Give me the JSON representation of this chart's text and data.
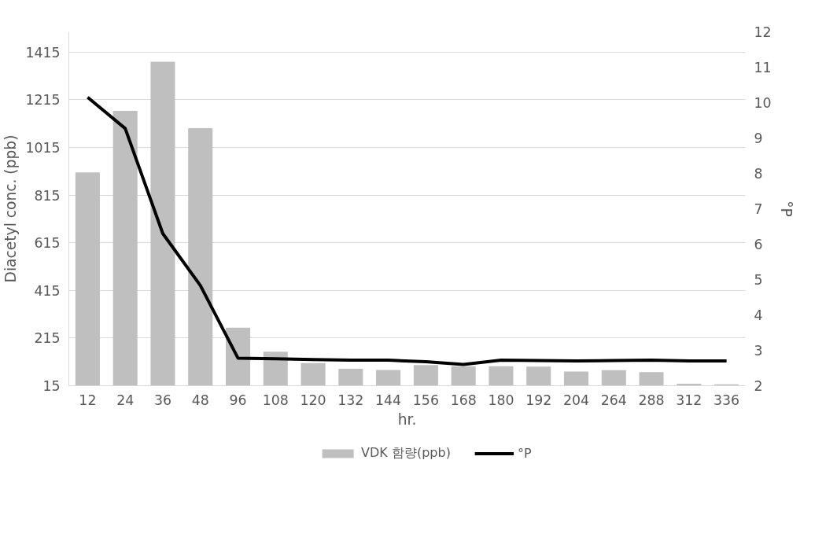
{
  "chart_data": {
    "type": "bar",
    "xlabel": "hr.",
    "ylabel": "Diacetyl conc. (ppb)",
    "y2label": "°P",
    "categories": [
      "12",
      "24",
      "36",
      "48",
      "96",
      "108",
      "120",
      "132",
      "144",
      "156",
      "168",
      "180",
      "192",
      "204",
      "264",
      "288",
      "312",
      "336"
    ],
    "series": [
      {
        "name": "VDK 함량(ppb)",
        "color": "#bfbfbf",
        "values": [
          910,
          1168,
          1375,
          1096,
          258,
          158,
          110,
          86,
          81,
          102,
          97,
          97,
          95,
          74,
          80,
          72,
          23,
          21
        ]
      },
      {
        "name": "°P",
        "color": "#000000",
        "type": "line",
        "axis": "y2",
        "values": [
          10.15,
          9.27,
          6.3,
          4.83,
          2.78,
          2.76,
          2.74,
          2.72,
          2.72,
          2.68,
          2.6,
          2.72,
          2.71,
          2.7,
          2.71,
          2.72,
          2.7,
          2.7
        ]
      }
    ],
    "ylim": [
      15,
      1500
    ],
    "yticks": [
      15,
      215,
      415,
      615,
      815,
      1015,
      1215,
      1415
    ],
    "y2lim": [
      2,
      12
    ],
    "y2ticks": [
      2,
      3,
      4,
      5,
      6,
      7,
      8,
      9,
      10,
      11,
      12
    ],
    "grid": "y",
    "legend": "bottom",
    "marker": "none",
    "line_style": "solid"
  }
}
